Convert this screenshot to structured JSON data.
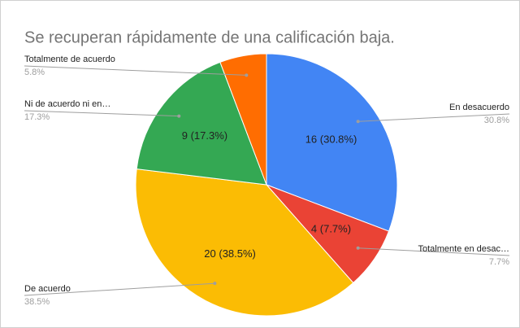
{
  "chart_data": {
    "type": "pie",
    "title": "Se recuperan rápidamente de una calificación baja.",
    "categories": [
      "En desacuerdo",
      "Totalmente en desac…",
      "De acuerdo",
      "Ni de acuerdo ni en…",
      "Totalmente de acuerdo"
    ],
    "values": [
      16,
      4,
      20,
      9,
      3
    ],
    "value_labels": [
      "16 (30.8%)",
      "4 (7.7%)",
      "20 (38.5%)",
      "9 (17.3%)",
      null
    ],
    "percent_labels": [
      "30.8%",
      "7.7%",
      "38.5%",
      "17.3%",
      "5.8%"
    ],
    "colors": [
      "#4285f4",
      "#ea4335",
      "#fbbc04",
      "#34a853",
      "#ff6d01"
    ]
  }
}
